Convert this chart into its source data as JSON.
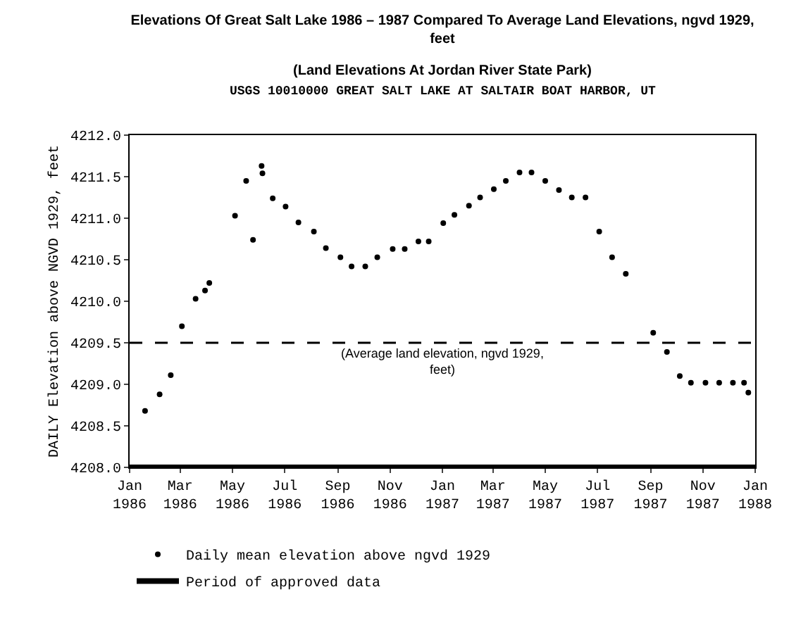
{
  "chart_data": {
    "type": "scatter",
    "title": "Elevations Of Great Salt Lake 1986 – 1987 Compared To Average Land Elevations, ngvd 1929,\nfeet",
    "subtitle": "(Land Elevations At Jordan River State Park)",
    "annotations": [
      "USGS 10010000 GREAT SALT LAKE AT SALTAIR BOAT HARBOR, UT"
    ],
    "ylabel": "DAILY Elevation above NGVD 1929, feet",
    "series": [
      {
        "name": "Daily mean elevation above ngvd 1929",
        "marker": "circle",
        "color": "#000000",
        "x": [
          "1986-01-19",
          "1986-02-05",
          "1986-02-18",
          "1986-03-03",
          "1986-03-19",
          "1986-03-30",
          "1986-04-04",
          "1986-05-04",
          "1986-05-17",
          "1986-05-25",
          "1986-06-04",
          "1986-06-05",
          "1986-06-17",
          "1986-07-02",
          "1986-07-17",
          "1986-08-04",
          "1986-08-18",
          "1986-09-04",
          "1986-09-17",
          "1986-10-03",
          "1986-10-17",
          "1986-11-04",
          "1986-11-18",
          "1986-12-04",
          "1986-12-16",
          "1987-01-02",
          "1987-01-15",
          "1987-02-01",
          "1987-02-14",
          "1987-03-02",
          "1987-03-16",
          "1987-04-01",
          "1987-04-15",
          "1987-05-01",
          "1987-05-17",
          "1987-06-01",
          "1987-06-17",
          "1987-07-03",
          "1987-07-18",
          "1987-08-03",
          "1987-09-04",
          "1987-09-20",
          "1987-10-05",
          "1987-10-18",
          "1987-11-04",
          "1987-11-20",
          "1987-12-06",
          "1987-12-19",
          "1987-12-24"
        ],
        "values": [
          4208.68,
          4208.88,
          4209.11,
          4209.7,
          4210.03,
          4210.13,
          4210.22,
          4211.03,
          4211.45,
          4210.74,
          4211.63,
          4211.54,
          4211.24,
          4211.14,
          4210.95,
          4210.84,
          4210.64,
          4210.53,
          4210.42,
          4210.42,
          4210.53,
          4210.63,
          4210.63,
          4210.72,
          4210.72,
          4210.94,
          4211.04,
          4211.15,
          4211.25,
          4211.35,
          4211.45,
          4211.55,
          4211.55,
          4211.45,
          4211.34,
          4211.25,
          4211.25,
          4210.84,
          4210.53,
          4210.33,
          4209.62,
          4209.39,
          4209.1,
          4209.02,
          4209.02,
          4209.02,
          4209.02,
          4209.02,
          4208.9
        ]
      },
      {
        "name": "Period of approved data",
        "type": "line",
        "line_style": "solid",
        "color": "#000000",
        "x": [
          "1986-01-01",
          "1988-01-01"
        ],
        "values": [
          4208.0,
          4208.0
        ]
      }
    ],
    "ref_lines": [
      {
        "axis": "y",
        "value": 4209.5,
        "label": "(Average land elevation, ngvd 1929,\nfeet)",
        "line_style": "dashed",
        "color": "#000000"
      }
    ],
    "xlim": [
      "1986-01-01",
      "1988-01-01"
    ],
    "xticks": [
      {
        "value": "1986-01-01",
        "label": "Jan\n1986"
      },
      {
        "value": "1986-03-01",
        "label": "Mar\n1986"
      },
      {
        "value": "1986-05-01",
        "label": "May\n1986"
      },
      {
        "value": "1986-07-01",
        "label": "Jul\n1986"
      },
      {
        "value": "1986-09-01",
        "label": "Sep\n1986"
      },
      {
        "value": "1986-11-01",
        "label": "Nov\n1986"
      },
      {
        "value": "1987-01-01",
        "label": "Jan\n1987"
      },
      {
        "value": "1987-03-01",
        "label": "Mar\n1987"
      },
      {
        "value": "1987-05-01",
        "label": "May\n1987"
      },
      {
        "value": "1987-07-01",
        "label": "Jul\n1987"
      },
      {
        "value": "1987-09-01",
        "label": "Sep\n1987"
      },
      {
        "value": "1987-11-01",
        "label": "Nov\n1987"
      },
      {
        "value": "1988-01-01",
        "label": "Jan\n1988"
      }
    ],
    "ylim": [
      4208.0,
      4212.0
    ],
    "yticks": [
      {
        "value": 4208.0,
        "label": "4208.0"
      },
      {
        "value": 4208.5,
        "label": "4208.5"
      },
      {
        "value": 4209.0,
        "label": "4209.0"
      },
      {
        "value": 4209.5,
        "label": "4209.5"
      },
      {
        "value": 4210.0,
        "label": "4210.0"
      },
      {
        "value": 4210.5,
        "label": "4210.5"
      },
      {
        "value": 4211.0,
        "label": "4211.0"
      },
      {
        "value": 4211.5,
        "label": "4211.5"
      },
      {
        "value": 4212.0,
        "label": "4212.0"
      }
    ],
    "legend": "bottom left"
  }
}
